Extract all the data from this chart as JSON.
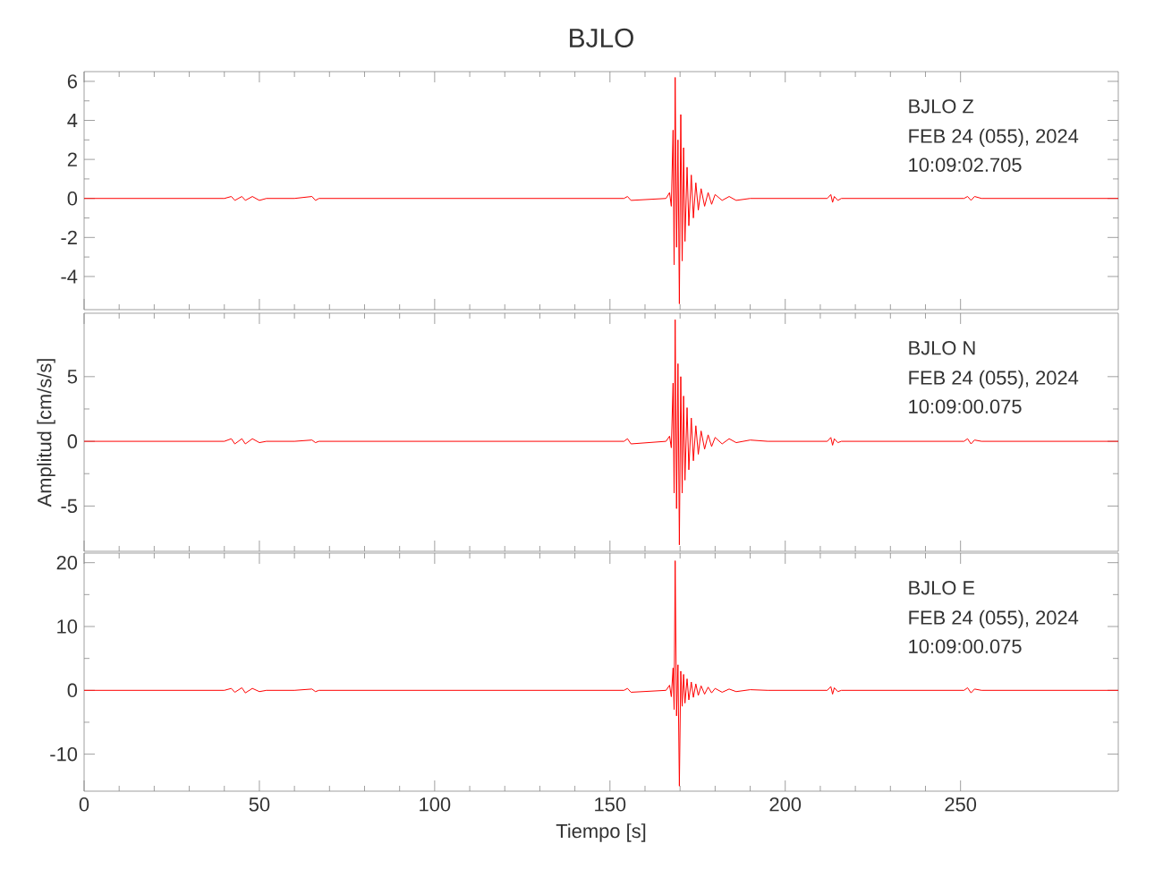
{
  "chart_data": [
    {
      "type": "line",
      "title": "BJLO",
      "color": "#ff0000",
      "xlim": [
        0,
        295
      ],
      "xticks": [
        0,
        50,
        100,
        150,
        200,
        250
      ],
      "ylim": [
        -5.7,
        6.5
      ],
      "yticks": [
        -4,
        -2,
        0,
        2,
        4,
        6
      ],
      "tick_labels": "y",
      "annotations": [
        "BJLO   Z",
        "FEB 24 (055), 2024",
        "10:09:02.705"
      ],
      "x": [
        0,
        20,
        40,
        42,
        43,
        45,
        46,
        48,
        50,
        52,
        60,
        65,
        66,
        67,
        80,
        120,
        154,
        155,
        156,
        166,
        167,
        167.5,
        168,
        168.3,
        168.6,
        169,
        169.4,
        169.8,
        170.2,
        170.6,
        171,
        171.4,
        172,
        172.5,
        173.2,
        173.8,
        174.5,
        175.2,
        176,
        177,
        178,
        179,
        180,
        182,
        184,
        186,
        190,
        195,
        212,
        213,
        213.5,
        214,
        215,
        216,
        251,
        252,
        253,
        254,
        256,
        280,
        295
      ],
      "values": [
        0,
        0,
        0,
        0.1,
        -0.1,
        0.1,
        -0.1,
        0.1,
        -0.1,
        0,
        0,
        0.1,
        -0.1,
        0,
        0,
        0,
        0,
        0.1,
        -0.1,
        0,
        0.3,
        -0.4,
        3.5,
        -3.4,
        6.2,
        -2.5,
        3,
        -5.4,
        4.3,
        -3.2,
        2.6,
        -2.2,
        1.6,
        -1.4,
        1.2,
        -1,
        0.8,
        -0.6,
        0.5,
        -0.4,
        0.3,
        -0.3,
        0.2,
        -0.1,
        0.1,
        -0.1,
        0,
        0,
        0,
        0.2,
        -0.2,
        0.1,
        -0.1,
        0,
        0,
        0.1,
        -0.1,
        0.1,
        0,
        0,
        0
      ]
    },
    {
      "type": "line",
      "ylabel": "Amplitud [cm/s/s]",
      "color": "#ff0000",
      "xlim": [
        0,
        295
      ],
      "xticks": [
        0,
        50,
        100,
        150,
        200,
        250
      ],
      "ylim": [
        -8.5,
        9.9
      ],
      "yticks": [
        -5,
        0,
        5
      ],
      "tick_labels": "y",
      "annotations": [
        "BJLO   N",
        "FEB 24 (055), 2024",
        "10:09:00.075"
      ],
      "x": [
        0,
        20,
        40,
        42,
        43,
        45,
        46,
        48,
        50,
        52,
        60,
        65,
        66,
        67,
        80,
        120,
        154,
        155,
        156,
        166,
        167,
        167.5,
        168,
        168.3,
        168.6,
        169,
        169.4,
        169.8,
        170.2,
        170.6,
        171,
        171.4,
        172,
        172.5,
        173.2,
        173.8,
        174.5,
        175.2,
        176,
        177,
        178,
        179,
        180,
        182,
        184,
        186,
        190,
        195,
        212,
        213,
        213.5,
        214,
        215,
        216,
        251,
        252,
        253,
        254,
        256,
        280,
        295
      ],
      "values": [
        0,
        0,
        0,
        0.2,
        -0.2,
        0.2,
        -0.2,
        0.2,
        -0.1,
        0,
        0,
        0.1,
        -0.1,
        0,
        0,
        0,
        0,
        0.2,
        -0.2,
        0,
        0.4,
        -0.5,
        4.5,
        -4,
        9.4,
        -5.2,
        6,
        -8,
        5,
        -4,
        3.5,
        -3,
        2.6,
        -2.2,
        1.8,
        -1.5,
        1.2,
        -1,
        0.8,
        -0.6,
        0.5,
        -0.4,
        0.3,
        -0.2,
        0.2,
        -0.1,
        0.1,
        0,
        0,
        0.3,
        -0.3,
        0.2,
        -0.1,
        0,
        0,
        0.2,
        -0.2,
        0.1,
        0,
        0,
        0
      ]
    },
    {
      "type": "line",
      "xlabel": "Tiempo [s]",
      "color": "#ff0000",
      "xlim": [
        0,
        295
      ],
      "xticks": [
        0,
        50,
        100,
        150,
        200,
        250
      ],
      "ylim": [
        -15.8,
        21.5
      ],
      "yticks": [
        -10,
        0,
        10,
        20
      ],
      "annotations": [
        "BJLO   E",
        "FEB 24 (055), 2024",
        "10:09:00.075"
      ],
      "x": [
        0,
        20,
        40,
        42,
        43,
        45,
        46,
        48,
        50,
        52,
        60,
        65,
        66,
        67,
        80,
        120,
        154,
        155,
        156,
        166,
        167,
        167.5,
        168,
        168.3,
        168.6,
        169,
        169.4,
        169.8,
        170.2,
        170.6,
        171,
        171.4,
        172,
        172.5,
        173.2,
        173.8,
        174.5,
        175.2,
        176,
        177,
        178,
        179,
        180,
        182,
        184,
        186,
        190,
        195,
        212,
        213,
        213.5,
        214,
        215,
        216,
        251,
        252,
        253,
        254,
        256,
        280,
        295
      ],
      "values": [
        0,
        0,
        0,
        0.3,
        -0.3,
        0.4,
        -0.4,
        0.3,
        -0.2,
        0,
        0,
        0.2,
        -0.2,
        0,
        0,
        0,
        0,
        0.3,
        -0.3,
        0,
        0.8,
        -1,
        3.5,
        -3,
        20.3,
        -4,
        4,
        -15,
        3,
        -2.5,
        2.5,
        -2,
        1.8,
        -1.5,
        1.3,
        -1.1,
        1,
        -0.8,
        0.7,
        -0.6,
        0.5,
        -0.4,
        0.3,
        -0.3,
        0.2,
        -0.2,
        0.1,
        0,
        0,
        0.6,
        -0.6,
        0.4,
        -0.2,
        0,
        0,
        0.4,
        -0.4,
        0.2,
        0,
        0,
        0
      ]
    }
  ]
}
